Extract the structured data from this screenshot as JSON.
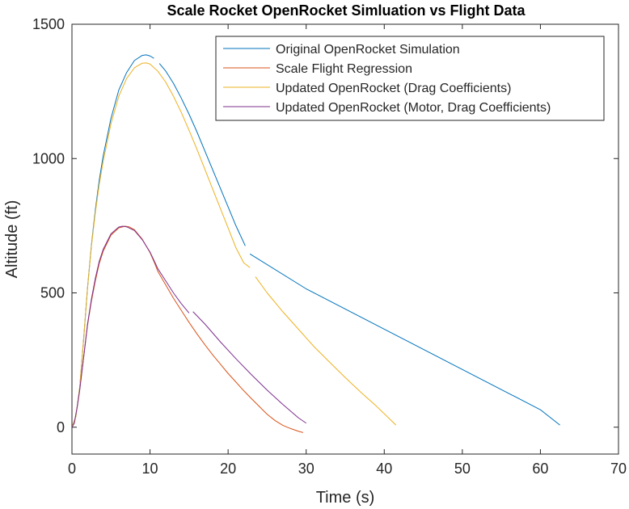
{
  "chart_data": {
    "type": "line",
    "title": "Scale Rocket OpenRocket Simluation vs Flight Data",
    "xlabel": "Time (s)",
    "ylabel": "Altitude (ft)",
    "xlim": [
      0,
      70
    ],
    "ylim": [
      -100,
      1500
    ],
    "xticks": [
      0,
      10,
      20,
      30,
      40,
      50,
      60,
      70
    ],
    "xtick_labels": [
      "0",
      "10",
      "20",
      "30",
      "40",
      "50",
      "60",
      "70"
    ],
    "yticks": [
      0,
      500,
      1000,
      1500
    ],
    "ytick_labels": [
      "0",
      "500",
      "1000",
      "1500"
    ],
    "grid": false,
    "legend_position": "top-right",
    "series": [
      {
        "name": "Original OpenRocket Simulation",
        "color": "#0072BD",
        "segments": [
          [
            [
              0,
              0
            ],
            [
              0.5,
              40
            ],
            [
              1,
              150
            ],
            [
              1.5,
              330
            ],
            [
              2,
              520
            ],
            [
              2.5,
              680
            ],
            [
              3,
              810
            ],
            [
              3.5,
              920
            ],
            [
              4,
              1010
            ],
            [
              5,
              1150
            ],
            [
              6,
              1255
            ],
            [
              7,
              1320
            ],
            [
              8,
              1365
            ],
            [
              9,
              1384
            ],
            [
              9.5,
              1386
            ],
            [
              10,
              1382
            ],
            [
              10.5,
              1373
            ]
          ],
          [
            [
              11.2,
              1354
            ],
            [
              12,
              1326
            ],
            [
              13,
              1280
            ],
            [
              14,
              1225
            ],
            [
              15,
              1165
            ],
            [
              16,
              1100
            ],
            [
              17,
              1030
            ],
            [
              18,
              960
            ],
            [
              19,
              890
            ],
            [
              20,
              820
            ],
            [
              21,
              750
            ],
            [
              22.2,
              675
            ]
          ],
          [
            [
              22.8,
              645
            ],
            [
              30,
              515
            ],
            [
              40,
              365
            ],
            [
              50,
              215
            ],
            [
              60,
              65
            ],
            [
              62.5,
              8
            ]
          ]
        ]
      },
      {
        "name": "Scale Flight Regression",
        "color": "#D95319",
        "segments": [
          [
            [
              0,
              0
            ],
            [
              0.3,
              15
            ],
            [
              0.7,
              80
            ],
            [
              1,
              140
            ],
            [
              1.5,
              260
            ],
            [
              2,
              380
            ],
            [
              2.5,
              470
            ],
            [
              3,
              545
            ],
            [
              3.5,
              610
            ],
            [
              4,
              655
            ],
            [
              5,
              715
            ],
            [
              6,
              742
            ],
            [
              6.8,
              748
            ],
            [
              7.3,
              746
            ],
            [
              8,
              735
            ],
            [
              9,
              700
            ],
            [
              10,
              650
            ],
            [
              10.6,
              610
            ],
            [
              11,
              580
            ],
            [
              12,
              530
            ],
            [
              13,
              480
            ],
            [
              14,
              435
            ],
            [
              15,
              390
            ],
            [
              16,
              348
            ],
            [
              17,
              308
            ],
            [
              18,
              270
            ],
            [
              19,
              235
            ],
            [
              20,
              200
            ],
            [
              21,
              168
            ],
            [
              22,
              136
            ],
            [
              23,
              106
            ],
            [
              24,
              77
            ],
            [
              25,
              48
            ],
            [
              26,
              25
            ],
            [
              27,
              7
            ],
            [
              28,
              -5
            ],
            [
              29,
              -15
            ],
            [
              29.6,
              -20
            ]
          ]
        ]
      },
      {
        "name": "Updated OpenRocket (Drag Coefficients)",
        "color": "#EDB120",
        "segments": [
          [
            [
              0,
              0
            ],
            [
              0.5,
              40
            ],
            [
              1,
              150
            ],
            [
              1.5,
              330
            ],
            [
              2,
              520
            ],
            [
              2.5,
              675
            ],
            [
              3,
              800
            ],
            [
              3.5,
              905
            ],
            [
              4,
              990
            ],
            [
              5,
              1130
            ],
            [
              6,
              1232
            ],
            [
              7,
              1298
            ],
            [
              8,
              1338
            ],
            [
              9,
              1355
            ],
            [
              9.5,
              1356
            ],
            [
              10,
              1352
            ],
            [
              11,
              1325
            ],
            [
              12,
              1285
            ],
            [
              13,
              1232
            ],
            [
              14,
              1172
            ],
            [
              15,
              1105
            ],
            [
              16,
              1035
            ],
            [
              17,
              962
            ],
            [
              18,
              888
            ],
            [
              19,
              815
            ],
            [
              20,
              742
            ],
            [
              21,
              668
            ],
            [
              22,
              612
            ],
            [
              22.8,
              594
            ]
          ],
          [
            [
              23.5,
              560
            ],
            [
              25,
              500
            ],
            [
              27,
              430
            ],
            [
              29,
              365
            ],
            [
              31,
              300
            ],
            [
              33,
              242
            ],
            [
              35,
              185
            ],
            [
              37,
              130
            ],
            [
              39,
              78
            ],
            [
              41.5,
              8
            ]
          ]
        ]
      },
      {
        "name": "Updated OpenRocket (Motor, Drag Coefficients)",
        "color": "#7E2F8E",
        "segments": [
          [
            [
              0,
              0
            ],
            [
              0.3,
              15
            ],
            [
              0.7,
              80
            ],
            [
              1,
              140
            ],
            [
              1.5,
              262
            ],
            [
              2,
              385
            ],
            [
              2.5,
              478
            ],
            [
              3,
              555
            ],
            [
              3.5,
              618
            ],
            [
              4,
              662
            ],
            [
              5,
              720
            ],
            [
              6,
              745
            ],
            [
              6.5,
              748
            ],
            [
              7,
              746
            ],
            [
              8,
              732
            ],
            [
              9,
              698
            ],
            [
              10,
              652
            ],
            [
              10.6,
              615
            ],
            [
              11,
              590
            ],
            [
              12,
              545
            ],
            [
              13,
              500
            ],
            [
              14,
              460
            ],
            [
              15,
              425
            ]
          ],
          [
            [
              15.5,
              430
            ],
            [
              17,
              385
            ],
            [
              19,
              318
            ],
            [
              21,
              255
            ],
            [
              23,
              195
            ],
            [
              25,
              138
            ],
            [
              27,
              85
            ],
            [
              29,
              35
            ],
            [
              30,
              15
            ]
          ]
        ]
      }
    ]
  }
}
